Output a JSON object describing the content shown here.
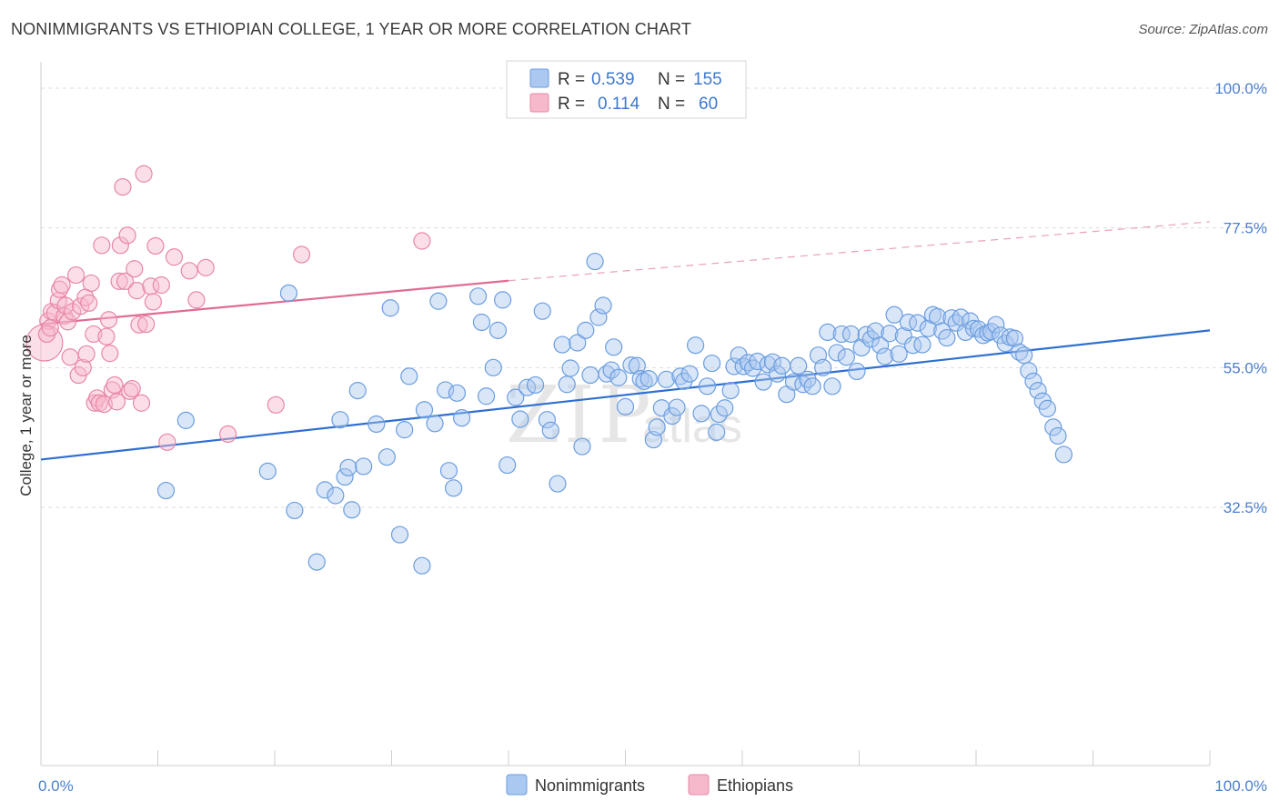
{
  "title": "NONIMMIGRANTS VS ETHIOPIAN COLLEGE, 1 YEAR OR MORE CORRELATION CHART",
  "source": "Source: ZipAtlas.com",
  "watermark": {
    "big": "ZIP",
    "small": "atlas"
  },
  "legend": {
    "rows": [
      {
        "r_label": "R =",
        "r_value": "0.539",
        "n_label": "N =",
        "n_value": "155",
        "color": "#aac8f0",
        "stroke": "#6a9de0"
      },
      {
        "r_label": "R =",
        "r_value": "0.114",
        "n_label": "N =",
        "n_value": "60",
        "color": "#f6b9cc",
        "stroke": "#e887a6"
      }
    ]
  },
  "bottom_legend": [
    {
      "label": "Nonimmigrants",
      "color": "#aac8f0",
      "stroke": "#6a9de0"
    },
    {
      "label": "Ethiopians",
      "color": "#f6b9cc",
      "stroke": "#e887a6"
    }
  ],
  "chart_data": {
    "type": "scatter",
    "xlabel": "",
    "ylabel": "College, 1 year or more",
    "xlim": [
      0,
      100
    ],
    "ylim": [
      10,
      100
    ],
    "x_tick_labels": [
      "0.0%",
      "100.0%"
    ],
    "y_ticks": [
      {
        "value": 100,
        "label": "100.0%"
      },
      {
        "value": 77.5,
        "label": "77.5%"
      },
      {
        "value": 55,
        "label": "55.0%"
      },
      {
        "value": 32.5,
        "label": "32.5%"
      }
    ],
    "grid": true,
    "series": [
      {
        "name": "Nonimmigrants",
        "color": "#6a9de0",
        "trend": {
          "x0": 0,
          "y0": 40.2,
          "x1": 100,
          "y1": 61.0
        },
        "points": [
          [
            10.7,
            35.2
          ],
          [
            12.4,
            46.5
          ],
          [
            19.4,
            38.3
          ],
          [
            21.2,
            67.0
          ],
          [
            21.7,
            32.0
          ],
          [
            23.6,
            23.7
          ],
          [
            24.3,
            35.3
          ],
          [
            25.2,
            34.4
          ],
          [
            25.6,
            46.6
          ],
          [
            26.0,
            37.4
          ],
          [
            26.3,
            38.9
          ],
          [
            26.6,
            32.1
          ],
          [
            27.1,
            51.3
          ],
          [
            27.6,
            39.1
          ],
          [
            28.7,
            45.9
          ],
          [
            29.6,
            40.6
          ],
          [
            29.9,
            64.6
          ],
          [
            30.7,
            28.1
          ],
          [
            31.1,
            45.0
          ],
          [
            31.5,
            53.6
          ],
          [
            32.6,
            23.1
          ],
          [
            32.8,
            48.2
          ],
          [
            33.7,
            46.0
          ],
          [
            34.0,
            65.7
          ],
          [
            34.6,
            51.4
          ],
          [
            34.9,
            38.4
          ],
          [
            35.3,
            35.6
          ],
          [
            35.6,
            50.9
          ],
          [
            36.0,
            46.9
          ],
          [
            37.4,
            66.5
          ],
          [
            37.7,
            62.3
          ],
          [
            38.1,
            50.4
          ],
          [
            38.7,
            55.0
          ],
          [
            39.1,
            61.0
          ],
          [
            39.5,
            65.9
          ],
          [
            39.9,
            39.3
          ],
          [
            40.6,
            50.2
          ],
          [
            41.0,
            46.7
          ],
          [
            41.6,
            51.8
          ],
          [
            42.3,
            52.2
          ],
          [
            42.9,
            64.1
          ],
          [
            43.3,
            46.6
          ],
          [
            43.6,
            44.9
          ],
          [
            44.2,
            36.3
          ],
          [
            44.6,
            58.7
          ],
          [
            45.0,
            52.3
          ],
          [
            45.3,
            54.9
          ],
          [
            45.9,
            59.0
          ],
          [
            46.3,
            42.3
          ],
          [
            46.6,
            61.0
          ],
          [
            47.0,
            53.8
          ],
          [
            47.4,
            72.1
          ],
          [
            47.7,
            63.1
          ],
          [
            48.1,
            65.0
          ],
          [
            48.4,
            54.0
          ],
          [
            48.8,
            54.6
          ],
          [
            49.0,
            58.3
          ],
          [
            49.4,
            53.4
          ],
          [
            50.0,
            48.7
          ],
          [
            50.5,
            55.4
          ],
          [
            51.0,
            55.3
          ],
          [
            51.3,
            53.2
          ],
          [
            51.6,
            52.8
          ],
          [
            52.0,
            53.2
          ],
          [
            52.4,
            43.4
          ],
          [
            52.7,
            45.4
          ],
          [
            53.1,
            48.5
          ],
          [
            53.5,
            53.1
          ],
          [
            54.0,
            47.2
          ],
          [
            54.4,
            48.6
          ],
          [
            54.7,
            53.6
          ],
          [
            55.0,
            52.8
          ],
          [
            55.5,
            54.0
          ],
          [
            56.0,
            58.6
          ],
          [
            56.5,
            47.6
          ],
          [
            57.0,
            52.0
          ],
          [
            57.4,
            55.7
          ],
          [
            57.8,
            44.6
          ],
          [
            58.0,
            47.5
          ],
          [
            58.5,
            48.5
          ],
          [
            59.0,
            51.3
          ],
          [
            59.3,
            55.2
          ],
          [
            59.7,
            57.0
          ],
          [
            60.1,
            55.2
          ],
          [
            60.5,
            55.8
          ],
          [
            60.9,
            54.9
          ],
          [
            61.3,
            56.0
          ],
          [
            61.8,
            52.7
          ],
          [
            62.2,
            55.5
          ],
          [
            62.6,
            55.9
          ],
          [
            63.0,
            54.0
          ],
          [
            63.4,
            55.3
          ],
          [
            63.8,
            50.7
          ],
          [
            64.4,
            52.7
          ],
          [
            64.8,
            55.3
          ],
          [
            65.2,
            52.3
          ],
          [
            65.6,
            53.1
          ],
          [
            66.0,
            52.0
          ],
          [
            66.5,
            57.0
          ],
          [
            66.9,
            55.0
          ],
          [
            67.3,
            60.7
          ],
          [
            67.7,
            52.0
          ],
          [
            68.1,
            57.4
          ],
          [
            68.5,
            60.4
          ],
          [
            68.9,
            56.7
          ],
          [
            69.3,
            60.4
          ],
          [
            69.8,
            54.4
          ],
          [
            70.2,
            58.2
          ],
          [
            70.6,
            60.3
          ],
          [
            71.0,
            59.6
          ],
          [
            71.4,
            60.9
          ],
          [
            71.8,
            58.6
          ],
          [
            72.2,
            56.8
          ],
          [
            72.6,
            60.5
          ],
          [
            73.0,
            63.5
          ],
          [
            73.4,
            57.2
          ],
          [
            73.8,
            60.1
          ],
          [
            74.2,
            62.3
          ],
          [
            74.6,
            58.6
          ],
          [
            75.0,
            62.2
          ],
          [
            75.4,
            58.7
          ],
          [
            75.9,
            61.3
          ],
          [
            76.3,
            63.5
          ],
          [
            76.7,
            63.2
          ],
          [
            77.1,
            60.9
          ],
          [
            77.5,
            59.8
          ],
          [
            77.9,
            63.0
          ],
          [
            78.3,
            62.2
          ],
          [
            78.7,
            63.1
          ],
          [
            79.1,
            60.7
          ],
          [
            79.5,
            62.5
          ],
          [
            79.8,
            61.3
          ],
          [
            80.2,
            61.2
          ],
          [
            80.6,
            60.2
          ],
          [
            81.0,
            60.6
          ],
          [
            81.3,
            60.8
          ],
          [
            81.7,
            61.9
          ],
          [
            82.1,
            60.2
          ],
          [
            82.5,
            58.9
          ],
          [
            82.9,
            59.9
          ],
          [
            83.3,
            59.7
          ],
          [
            83.7,
            57.5
          ],
          [
            84.1,
            57.0
          ],
          [
            84.5,
            54.5
          ],
          [
            84.9,
            52.8
          ],
          [
            85.3,
            51.3
          ],
          [
            85.7,
            49.6
          ],
          [
            86.1,
            48.4
          ],
          [
            86.6,
            45.4
          ],
          [
            87.0,
            44.0
          ],
          [
            87.5,
            41.0
          ]
        ]
      },
      {
        "name": "Ethiopians",
        "color": "#e887a6",
        "trend": {
          "x0": 0,
          "y0": 62.0,
          "x1": 40,
          "y1": 69.0
        },
        "trend_ext": {
          "x0": 40,
          "y0": 69.0,
          "x1": 100,
          "y1": 78.5
        },
        "points": [
          [
            0.3,
            59.0
          ],
          [
            0.6,
            62.5
          ],
          [
            0.9,
            64.0
          ],
          [
            1.2,
            63.8
          ],
          [
            1.5,
            65.8
          ],
          [
            1.6,
            67.6
          ],
          [
            1.8,
            68.3
          ],
          [
            2.0,
            63.3
          ],
          [
            2.1,
            65.0
          ],
          [
            2.3,
            62.4
          ],
          [
            2.5,
            56.7
          ],
          [
            2.7,
            64.0
          ],
          [
            3.0,
            69.9
          ],
          [
            3.2,
            53.8
          ],
          [
            3.4,
            64.9
          ],
          [
            3.6,
            55.0
          ],
          [
            3.8,
            66.3
          ],
          [
            3.9,
            57.2
          ],
          [
            4.1,
            65.4
          ],
          [
            4.3,
            68.6
          ],
          [
            4.5,
            60.4
          ],
          [
            4.6,
            49.3
          ],
          [
            4.8,
            50.1
          ],
          [
            5.0,
            49.3
          ],
          [
            5.2,
            74.7
          ],
          [
            5.4,
            49.1
          ],
          [
            5.6,
            60.0
          ],
          [
            5.8,
            62.7
          ],
          [
            5.9,
            57.3
          ],
          [
            6.1,
            51.4
          ],
          [
            6.3,
            52.2
          ],
          [
            6.5,
            49.5
          ],
          [
            6.7,
            68.9
          ],
          [
            6.8,
            74.7
          ],
          [
            7.0,
            84.1
          ],
          [
            7.2,
            68.9
          ],
          [
            7.4,
            76.3
          ],
          [
            7.6,
            51.2
          ],
          [
            7.8,
            51.6
          ],
          [
            8.0,
            70.9
          ],
          [
            8.2,
            67.4
          ],
          [
            8.4,
            61.9
          ],
          [
            8.6,
            49.3
          ],
          [
            8.8,
            86.2
          ],
          [
            9.0,
            62.0
          ],
          [
            9.4,
            68.1
          ],
          [
            9.6,
            65.6
          ],
          [
            9.8,
            74.6
          ],
          [
            10.3,
            68.3
          ],
          [
            10.8,
            43.0
          ],
          [
            11.4,
            72.8
          ],
          [
            12.7,
            70.6
          ],
          [
            13.3,
            65.9
          ],
          [
            14.1,
            71.1
          ],
          [
            16.0,
            44.3
          ],
          [
            20.1,
            49.0
          ],
          [
            22.3,
            73.2
          ],
          [
            32.6,
            75.4
          ],
          [
            0.5,
            60.4
          ],
          [
            0.8,
            61.4
          ]
        ]
      }
    ]
  }
}
